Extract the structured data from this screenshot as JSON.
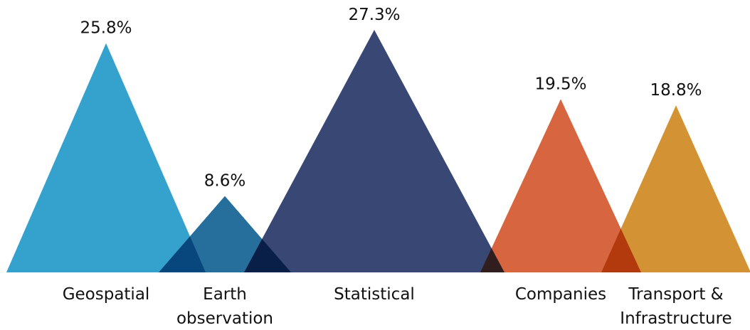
{
  "chart_data": {
    "type": "bar",
    "subtype": "overlapping-triangles",
    "unit": "%",
    "categories": [
      "Geospatial",
      "Earth observation",
      "Statistical",
      "Companies",
      "Transport & Infrastructure"
    ],
    "category_lines": [
      [
        "Geospatial"
      ],
      [
        "Earth",
        "observation"
      ],
      [
        "Statistical"
      ],
      [
        "Companies"
      ],
      [
        "Transport &",
        "Infrastructure"
      ]
    ],
    "values": [
      25.8,
      8.6,
      27.3,
      19.5,
      18.8
    ],
    "value_labels": [
      "25.8%",
      "8.6%",
      "27.3%",
      "19.5%",
      "18.8%"
    ],
    "colors": [
      "#2E9FCC",
      "#1F6A99",
      "#33416F",
      "#D6603A",
      "#D28F2D"
    ],
    "title": "",
    "xlabel": "",
    "ylabel": "",
    "grid": false,
    "legend": "none",
    "ylim": [
      0,
      27.3
    ]
  }
}
